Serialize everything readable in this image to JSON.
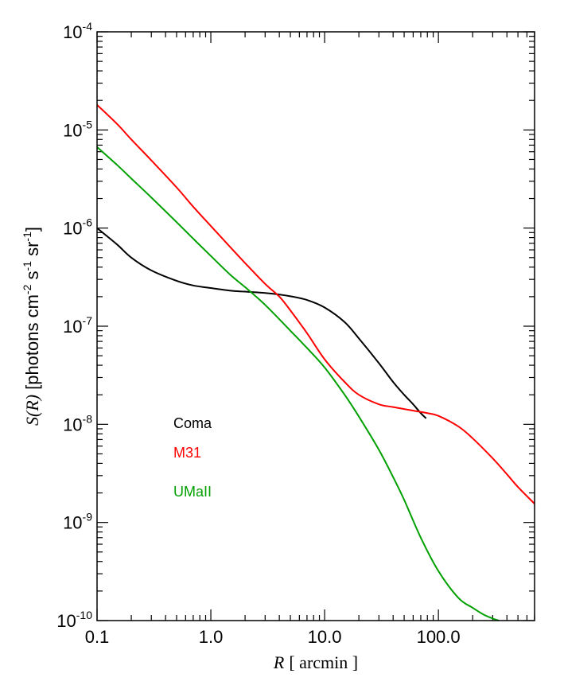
{
  "chart_data": {
    "type": "line",
    "xscale": "log",
    "yscale": "log",
    "xlim": [
      0.1,
      700
    ],
    "ylim": [
      1e-10,
      0.0001
    ],
    "xlabel": {
      "var": "R",
      "unit": "[ arcmin ]"
    },
    "ylabel": {
      "var": "S(R)",
      "unit": "[photons cm",
      "e1": "-2",
      "mid1": " s",
      "e2": "-1",
      "mid2": " sr",
      "e3": "-1",
      "end": "]"
    },
    "x_ticks": [
      {
        "value": 0.1,
        "label": "0.1"
      },
      {
        "value": 1,
        "label": "1.0"
      },
      {
        "value": 10,
        "label": "10.0"
      },
      {
        "value": 100,
        "label": "100.0"
      }
    ],
    "y_ticks": [
      {
        "value": 1e-10,
        "base": "10",
        "exp": "-10"
      },
      {
        "value": 1e-09,
        "base": "10",
        "exp": "-9"
      },
      {
        "value": 1e-08,
        "base": "10",
        "exp": "-8"
      },
      {
        "value": 1e-07,
        "base": "10",
        "exp": "-7"
      },
      {
        "value": 1e-06,
        "base": "10",
        "exp": "-6"
      },
      {
        "value": 1e-05,
        "base": "10",
        "exp": "-5"
      },
      {
        "value": 0.0001,
        "base": "10",
        "exp": "-4"
      }
    ],
    "series": [
      {
        "name": "Coma",
        "color": "#000000",
        "points": [
          [
            0.1,
            1e-06
          ],
          [
            0.15,
            6.8e-07
          ],
          [
            0.2,
            5e-07
          ],
          [
            0.3,
            3.7e-07
          ],
          [
            0.5,
            2.9e-07
          ],
          [
            0.7,
            2.6e-07
          ],
          [
            1.0,
            2.45e-07
          ],
          [
            1.5,
            2.3e-07
          ],
          [
            2.0,
            2.25e-07
          ],
          [
            3.0,
            2.18e-07
          ],
          [
            4.0,
            2.1e-07
          ],
          [
            5.0,
            2.02e-07
          ],
          [
            7.0,
            1.85e-07
          ],
          [
            10.0,
            1.55e-07
          ],
          [
            15.0,
            1.1e-07
          ],
          [
            20.0,
            7.5e-08
          ],
          [
            30.0,
            4.2e-08
          ],
          [
            40.0,
            2.7e-08
          ],
          [
            50.0,
            2e-08
          ],
          [
            60.0,
            1.6e-08
          ],
          [
            70.0,
            1.3e-08
          ],
          [
            78.0,
            1.15e-08
          ]
        ]
      },
      {
        "name": "M31",
        "color": "#ff0000",
        "points": [
          [
            0.1,
            1.8e-05
          ],
          [
            0.15,
            1.15e-05
          ],
          [
            0.2,
            8e-06
          ],
          [
            0.3,
            4.9e-06
          ],
          [
            0.5,
            2.6e-06
          ],
          [
            0.7,
            1.65e-06
          ],
          [
            1.0,
            1.05e-06
          ],
          [
            1.5,
            6.3e-07
          ],
          [
            2.0,
            4.4e-07
          ],
          [
            3.0,
            2.7e-07
          ],
          [
            4.0,
            2e-07
          ],
          [
            5.0,
            1.45e-07
          ],
          [
            7.0,
            8.5e-08
          ],
          [
            10.0,
            4.6e-08
          ],
          [
            15.0,
            2.7e-08
          ],
          [
            20.0,
            2e-08
          ],
          [
            30.0,
            1.6e-08
          ],
          [
            40.0,
            1.5e-08
          ],
          [
            60.0,
            1.38e-08
          ],
          [
            80.0,
            1.3e-08
          ],
          [
            100.0,
            1.22e-08
          ],
          [
            150.0,
            9.5e-09
          ],
          [
            200.0,
            7.2e-09
          ],
          [
            300.0,
            4.5e-09
          ],
          [
            400.0,
            3.1e-09
          ],
          [
            500.0,
            2.3e-09
          ],
          [
            700.0,
            1.55e-09
          ]
        ]
      },
      {
        "name": "UMaII",
        "color": "#00a000",
        "points": [
          [
            0.1,
            6.7e-06
          ],
          [
            0.15,
            4.4e-06
          ],
          [
            0.2,
            3.2e-06
          ],
          [
            0.3,
            2.05e-06
          ],
          [
            0.5,
            1.15e-06
          ],
          [
            0.7,
            7.8e-07
          ],
          [
            1.0,
            5.2e-07
          ],
          [
            1.5,
            3.3e-07
          ],
          [
            2.0,
            2.5e-07
          ],
          [
            3.0,
            1.65e-07
          ],
          [
            5.0,
            9e-08
          ],
          [
            7.0,
            6e-08
          ],
          [
            10.0,
            3.8e-08
          ],
          [
            15.0,
            2e-08
          ],
          [
            20.0,
            1.2e-08
          ],
          [
            30.0,
            5.5e-09
          ],
          [
            40.0,
            2.9e-09
          ],
          [
            50.0,
            1.7e-09
          ],
          [
            70.0,
            7e-10
          ],
          [
            100.0,
            3.2e-10
          ],
          [
            150.0,
            1.7e-10
          ],
          [
            200.0,
            1.35e-10
          ],
          [
            250.0,
            1.15e-10
          ],
          [
            300.0,
            1.05e-10
          ],
          [
            340.0,
            1e-10
          ]
        ]
      }
    ],
    "legend": [
      {
        "label": "Coma",
        "color": "#000000"
      },
      {
        "label": "M31",
        "color": "#ff0000"
      },
      {
        "label": "UMaII",
        "color": "#00a000"
      }
    ]
  }
}
